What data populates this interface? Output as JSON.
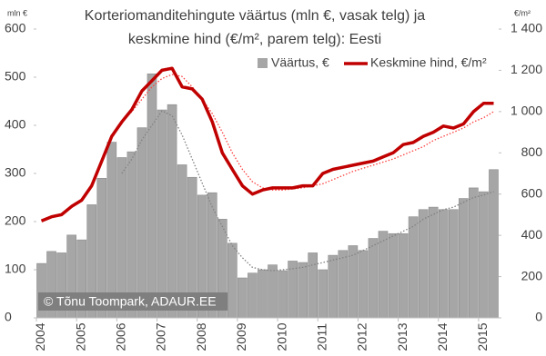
{
  "chart_data": {
    "type": "bar-line",
    "title": [
      "Korteriomanditehingute väärtus (mln €, vasak telg) ja",
      "keskmine hind (€/m², parem telg): Eesti"
    ],
    "y_unit": "mln €",
    "y2_unit": "€/m²",
    "annotation": "© Tõnu Toompark, ADAUR.EE",
    "categories": [
      "2004",
      null,
      null,
      null,
      "2005",
      null,
      null,
      null,
      "2006",
      null,
      null,
      null,
      "2007",
      null,
      null,
      null,
      "2008",
      null,
      null,
      null,
      "2009",
      null,
      null,
      null,
      "2010",
      null,
      null,
      null,
      "2011",
      null,
      null,
      null,
      "2012",
      null,
      null,
      null,
      "2013",
      null,
      null,
      null,
      "2014",
      null,
      null,
      null,
      "2015",
      null
    ],
    "series": [
      {
        "name": "Väärtus, €",
        "type": "bar",
        "color": "#a6a6a6",
        "values": [
          113,
          138,
          135,
          172,
          162,
          235,
          290,
          365,
          333,
          345,
          395,
          507,
          432,
          443,
          318,
          292,
          255,
          260,
          205,
          155,
          83,
          93,
          100,
          110,
          98,
          118,
          115,
          135,
          100,
          130,
          140,
          150,
          140,
          165,
          180,
          175,
          175,
          210,
          225,
          230,
          225,
          225,
          248,
          270,
          262,
          308
        ]
      },
      {
        "name": "Keskmine hind, €/m²",
        "type": "line",
        "axis": "y2",
        "color": "#c00000",
        "values": [
          470,
          490,
          500,
          540,
          570,
          640,
          760,
          880,
          950,
          1010,
          1100,
          1150,
          1200,
          1210,
          1120,
          1110,
          1060,
          950,
          800,
          720,
          640,
          600,
          620,
          630,
          630,
          630,
          640,
          640,
          700,
          720,
          730,
          740,
          750,
          760,
          780,
          800,
          840,
          850,
          880,
          900,
          930,
          920,
          940,
          1000,
          1040,
          1040
        ]
      }
    ],
    "trends": [
      {
        "color": "#808080",
        "values": [
          null,
          null,
          null,
          null,
          null,
          null,
          null,
          null,
          300,
          330,
          370,
          400,
          430,
          420,
          380,
          330,
          280,
          230,
          190,
          150,
          125,
          105,
          100,
          98,
          100,
          102,
          105,
          110,
          115,
          120,
          125,
          130,
          140,
          150,
          160,
          170,
          180,
          190,
          205,
          215,
          225,
          230,
          240,
          250,
          255,
          262
        ]
      },
      {
        "color": "#ff4040",
        "axis": "y2",
        "values": [
          null,
          null,
          null,
          null,
          null,
          null,
          null,
          null,
          950,
          1000,
          1060,
          1120,
          1160,
          1180,
          1170,
          1120,
          1060,
          990,
          900,
          800,
          720,
          660,
          630,
          620,
          620,
          625,
          630,
          640,
          650,
          670,
          690,
          710,
          725,
          740,
          755,
          770,
          790,
          810,
          830,
          860,
          880,
          900,
          920,
          950,
          970,
          1000
        ]
      }
    ],
    "ylim": [
      0,
      600
    ],
    "yticks": [
      0,
      100,
      200,
      300,
      400,
      500,
      600
    ],
    "y2lim": [
      0,
      1400
    ],
    "y2ticks": [
      0,
      200,
      400,
      600,
      800,
      {
        "value": 1000,
        "label": "1 000"
      },
      {
        "value": 1200,
        "label": "1 200"
      },
      {
        "value": 1400,
        "label": "1 400"
      }
    ],
    "legend": "top-right"
  }
}
